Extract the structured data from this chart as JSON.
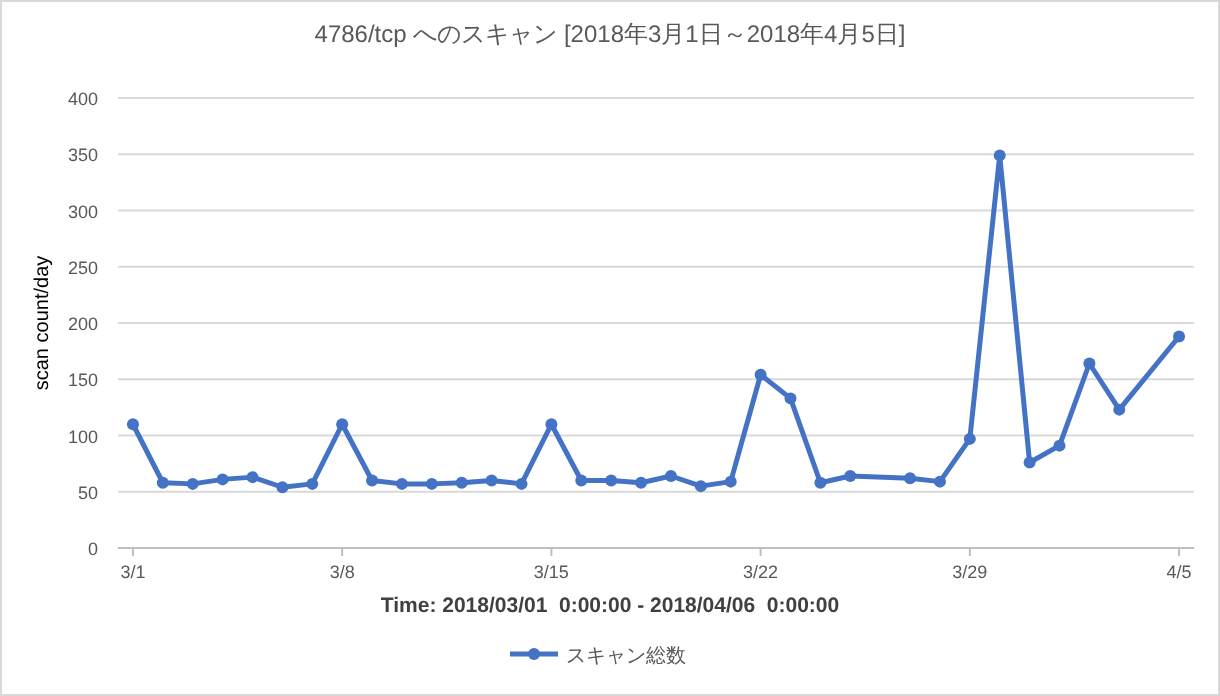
{
  "chart_data": {
    "type": "line",
    "title": "4786/tcp へのスキャン [2018年3月1日～2018年4月5日]",
    "xlabel": "Time: 2018/03/01  0:00:00 - 2018/04/06  0:00:00",
    "ylabel": "scan count/day",
    "x": [
      "2018-03-01",
      "2018-03-02",
      "2018-03-03",
      "2018-03-04",
      "2018-03-05",
      "2018-03-06",
      "2018-03-07",
      "2018-03-08",
      "2018-03-09",
      "2018-03-10",
      "2018-03-11",
      "2018-03-12",
      "2018-03-13",
      "2018-03-14",
      "2018-03-15",
      "2018-03-16",
      "2018-03-17",
      "2018-03-18",
      "2018-03-19",
      "2018-03-20",
      "2018-03-21",
      "2018-03-22",
      "2018-03-23",
      "2018-03-24",
      "2018-03-25",
      "2018-03-27",
      "2018-03-28",
      "2018-03-29",
      "2018-03-30",
      "2018-03-31",
      "2018-04-01",
      "2018-04-02",
      "2018-04-03",
      "2018-04-05"
    ],
    "series": [
      {
        "name": "スキャン総数",
        "color": "#4472c4",
        "values": [
          110,
          58,
          57,
          61,
          63,
          54,
          57,
          110,
          60,
          57,
          57,
          58,
          60,
          57,
          110,
          60,
          60,
          58,
          64,
          55,
          59,
          154,
          133,
          58,
          64,
          62,
          59,
          97,
          349,
          76,
          91,
          164,
          123,
          188
        ]
      }
    ],
    "xlim": [
      "2018-02-28T12:00",
      "2018-04-05T12:00"
    ],
    "xticks": [
      {
        "value": "2018-03-01",
        "label": "3/1"
      },
      {
        "value": "2018-03-08",
        "label": "3/8"
      },
      {
        "value": "2018-03-15",
        "label": "3/15"
      },
      {
        "value": "2018-03-22",
        "label": "3/22"
      },
      {
        "value": "2018-03-29",
        "label": "3/29"
      },
      {
        "value": "2018-04-05",
        "label": "4/5"
      }
    ],
    "ylim": [
      0,
      400
    ],
    "yticks": [
      0,
      50,
      100,
      150,
      200,
      250,
      300,
      350,
      400
    ],
    "grid": "y",
    "legend": "bottom",
    "marker": "circle",
    "line_style": "solid"
  }
}
